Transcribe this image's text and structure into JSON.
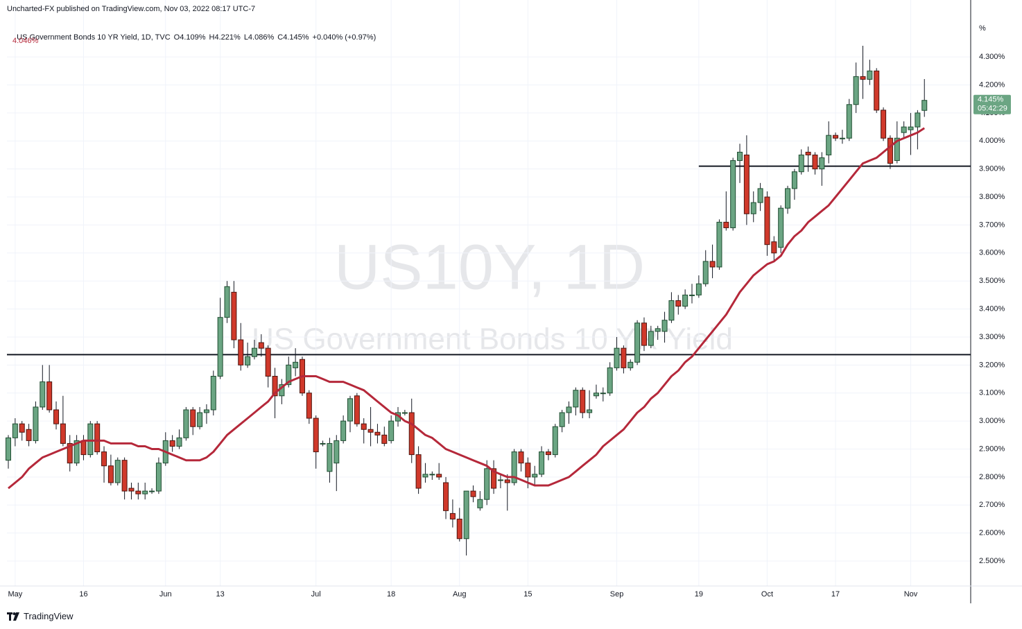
{
  "header": {
    "publisher": "Uncharted-FX published on TradingView.com, Nov 03, 2022 08:17 UTC-7"
  },
  "footer": {
    "brand": "TradingView"
  },
  "chart_data": {
    "type": "candlestick",
    "title": "US Government Bonds 10 YR Yield, 1D, TVC",
    "legend_values": [
      "O4.109%",
      "H4.221%",
      "L4.086%",
      "C4.145%",
      "+0.040% (+0.97%)"
    ],
    "watermark": [
      "US10Y, 1D",
      "US Government Bonds 10 YR Yield"
    ],
    "y_unit": "%",
    "price_label": {
      "label": "4.145%",
      "countdown": "05:42:29",
      "color": "#6ba583"
    },
    "categories": [
      null,
      "May",
      null,
      null,
      null,
      null,
      null,
      null,
      null,
      null,
      null,
      "16",
      null,
      null,
      null,
      null,
      null,
      null,
      null,
      null,
      null,
      null,
      null,
      "Jun",
      null,
      null,
      null,
      null,
      null,
      null,
      null,
      "13",
      null,
      null,
      null,
      null,
      null,
      null,
      null,
      null,
      null,
      null,
      null,
      null,
      null,
      "Jul",
      null,
      null,
      null,
      null,
      null,
      null,
      null,
      null,
      null,
      null,
      "18",
      null,
      null,
      null,
      null,
      null,
      null,
      null,
      null,
      null,
      "Aug",
      null,
      null,
      null,
      null,
      null,
      null,
      null,
      null,
      null,
      "15",
      null,
      null,
      null,
      null,
      null,
      null,
      null,
      null,
      null,
      null,
      null,
      null,
      "Sep",
      null,
      null,
      null,
      null,
      null,
      null,
      null,
      null,
      null,
      null,
      null,
      "19",
      null,
      null,
      null,
      null,
      null,
      null,
      null,
      null,
      null,
      "Oct",
      null,
      null,
      null,
      null,
      null,
      null,
      null,
      null,
      null,
      "17",
      null,
      null,
      null,
      null,
      null,
      null,
      null,
      null,
      null,
      null,
      "Nov",
      null,
      null
    ],
    "open": [
      2.86,
      2.94,
      2.99,
      2.97,
      2.93,
      3.05,
      3.14,
      3.04,
      2.99,
      2.92,
      2.85,
      2.93,
      2.88,
      2.99,
      2.89,
      2.84,
      2.78,
      2.86,
      2.76,
      2.75,
      2.74,
      2.75,
      2.75,
      2.85,
      2.93,
      2.91,
      2.94,
      3.04,
      2.98,
      3.03,
      3.04,
      3.16,
      3.37,
      3.46,
      3.29,
      3.2,
      3.23,
      3.28,
      3.26,
      3.16,
      3.09,
      3.13,
      3.19,
      3.22,
      3.1,
      3.01,
      2.92,
      2.82,
      2.85,
      2.93,
      3.0,
      3.09,
      2.99,
      2.97,
      2.96,
      2.95,
      2.93,
      3.0,
      3.03,
      3.03,
      2.88,
      2.8,
      2.81,
      2.81,
      2.78,
      2.67,
      2.65,
      2.58,
      2.75,
      2.69,
      2.72,
      2.83,
      2.79,
      2.79,
      2.78,
      2.89,
      2.85,
      2.8,
      2.81,
      2.89,
      2.88,
      2.98,
      3.03,
      3.05,
      3.11,
      3.03,
      3.09,
      3.1,
      3.1,
      3.19,
      3.26,
      3.19,
      3.21,
      3.35,
      3.27,
      3.32,
      3.32,
      3.36,
      3.43,
      3.41,
      3.45,
      3.45,
      3.49,
      3.57,
      3.55,
      3.71,
      3.69,
      3.93,
      3.95,
      3.74,
      3.78,
      3.8,
      3.64,
      3.62,
      3.76,
      3.83,
      3.89,
      3.96,
      3.95,
      3.9,
      3.95,
      4.02,
      4.01,
      4.01,
      4.13,
      4.23,
      4.22,
      4.25,
      4.11,
      4.01,
      3.93,
      4.03,
      4.04,
      4.05,
      4.109
    ],
    "high": [
      2.95,
      3.01,
      3.0,
      2.99,
      3.07,
      3.2,
      3.2,
      3.07,
      3.09,
      2.95,
      2.95,
      2.95,
      3.0,
      3.0,
      2.91,
      2.88,
      2.87,
      2.87,
      2.78,
      2.78,
      2.78,
      2.76,
      2.87,
      2.96,
      2.95,
      2.97,
      3.05,
      3.05,
      3.05,
      3.06,
      3.18,
      3.44,
      3.5,
      3.5,
      3.35,
      3.28,
      3.29,
      3.31,
      3.27,
      3.19,
      3.15,
      3.23,
      3.26,
      3.23,
      3.11,
      3.02,
      2.93,
      2.94,
      2.95,
      3.02,
      3.09,
      3.1,
      3.01,
      3.05,
      2.99,
      2.98,
      3.02,
      3.05,
      3.04,
      3.08,
      2.91,
      2.85,
      2.82,
      2.85,
      2.8,
      2.72,
      2.69,
      2.75,
      2.77,
      2.75,
      2.86,
      2.86,
      2.81,
      2.81,
      2.9,
      2.9,
      2.87,
      2.84,
      2.91,
      2.9,
      2.99,
      3.04,
      3.07,
      3.12,
      3.12,
      3.11,
      3.13,
      3.12,
      3.21,
      3.3,
      3.27,
      3.22,
      3.36,
      3.37,
      3.34,
      3.34,
      3.39,
      3.46,
      3.45,
      3.47,
      3.49,
      3.52,
      3.61,
      3.63,
      3.72,
      3.82,
      3.94,
      3.99,
      4.02,
      3.82,
      3.85,
      3.82,
      3.66,
      3.77,
      3.84,
      3.9,
      3.97,
      3.98,
      3.96,
      3.96,
      4.07,
      4.03,
      4.04,
      4.15,
      4.28,
      4.34,
      4.29,
      4.26,
      4.12,
      4.02,
      4.07,
      4.07,
      4.1,
      4.11,
      4.221
    ],
    "low": [
      2.83,
      2.91,
      2.93,
      2.91,
      2.92,
      3.04,
      3.03,
      2.97,
      2.91,
      2.82,
      2.84,
      2.86,
      2.87,
      2.88,
      2.78,
      2.77,
      2.77,
      2.72,
      2.72,
      2.72,
      2.72,
      2.74,
      2.74,
      2.84,
      2.89,
      2.9,
      2.93,
      2.95,
      2.97,
      2.99,
      3.02,
      3.15,
      3.35,
      3.26,
      3.18,
      3.19,
      3.22,
      3.23,
      3.12,
      3.01,
      3.06,
      3.12,
      3.16,
      3.09,
      2.99,
      2.83,
      2.91,
      2.78,
      2.75,
      2.92,
      2.96,
      2.98,
      2.92,
      2.91,
      2.92,
      2.91,
      2.92,
      2.98,
      3.02,
      2.85,
      2.74,
      2.78,
      2.79,
      2.79,
      2.65,
      2.62,
      2.57,
      2.52,
      2.71,
      2.68,
      2.7,
      2.74,
      2.76,
      2.68,
      2.77,
      2.82,
      2.76,
      2.77,
      2.8,
      2.86,
      2.87,
      2.96,
      2.99,
      3.02,
      3.01,
      3.01,
      3.08,
      3.07,
      3.09,
      3.18,
      3.17,
      3.18,
      3.2,
      3.25,
      3.26,
      3.29,
      3.28,
      3.35,
      3.38,
      3.4,
      3.42,
      3.44,
      3.48,
      3.51,
      3.54,
      3.68,
      3.68,
      3.85,
      3.7,
      3.71,
      3.75,
      3.59,
      3.57,
      3.6,
      3.74,
      3.79,
      3.88,
      3.89,
      3.88,
      3.84,
      3.92,
      4.0,
      3.99,
      4.0,
      4.1,
      4.15,
      4.2,
      4.1,
      4.0,
      3.9,
      3.92,
      4.01,
      3.95,
      3.97,
      4.086
    ],
    "close": [
      2.94,
      2.99,
      2.96,
      2.93,
      3.05,
      3.14,
      3.04,
      2.99,
      2.92,
      2.85,
      2.93,
      2.88,
      2.99,
      2.89,
      2.84,
      2.78,
      2.86,
      2.75,
      2.75,
      2.74,
      2.75,
      2.75,
      2.85,
      2.93,
      2.91,
      2.94,
      3.04,
      2.98,
      3.03,
      3.04,
      3.16,
      3.37,
      3.48,
      3.29,
      3.2,
      3.23,
      3.26,
      3.26,
      3.16,
      3.09,
      3.13,
      3.2,
      3.21,
      3.1,
      3.01,
      2.89,
      2.92,
      2.92,
      2.93,
      3.0,
      3.08,
      2.99,
      2.97,
      2.96,
      2.95,
      2.92,
      3.0,
      3.03,
      3.03,
      2.88,
      2.76,
      2.81,
      2.81,
      2.8,
      2.68,
      2.65,
      2.58,
      2.75,
      2.73,
      2.72,
      2.83,
      2.76,
      2.79,
      2.78,
      2.89,
      2.85,
      2.8,
      2.81,
      2.89,
      2.88,
      2.98,
      3.03,
      3.05,
      3.11,
      3.03,
      3.04,
      3.1,
      3.1,
      3.19,
      3.26,
      3.19,
      3.21,
      3.35,
      3.27,
      3.32,
      3.33,
      3.36,
      3.43,
      3.41,
      3.45,
      3.45,
      3.49,
      3.57,
      3.55,
      3.71,
      3.69,
      3.93,
      3.96,
      3.74,
      3.78,
      3.83,
      3.63,
      3.6,
      3.76,
      3.83,
      3.89,
      3.95,
      3.95,
      3.9,
      3.94,
      4.02,
      4.01,
      4.01,
      4.13,
      4.23,
      4.22,
      4.25,
      4.11,
      4.01,
      3.92,
      4.01,
      4.05,
      4.05,
      4.1,
      4.145
    ],
    "up_color": "#6ba583",
    "down_color": "#d0392b",
    "ma": {
      "label": "4.046%",
      "color": "#b5283a",
      "values": [
        2.76,
        2.78,
        2.8,
        2.83,
        2.85,
        2.87,
        2.88,
        2.89,
        2.9,
        2.91,
        2.92,
        2.93,
        2.93,
        2.93,
        2.93,
        2.92,
        2.92,
        2.92,
        2.92,
        2.91,
        2.91,
        2.9,
        2.9,
        2.89,
        2.88,
        2.87,
        2.86,
        2.86,
        2.86,
        2.87,
        2.89,
        2.92,
        2.95,
        2.97,
        2.99,
        3.01,
        3.03,
        3.05,
        3.07,
        3.1,
        3.12,
        3.14,
        3.15,
        3.16,
        3.16,
        3.16,
        3.15,
        3.14,
        3.14,
        3.14,
        3.13,
        3.12,
        3.11,
        3.09,
        3.07,
        3.05,
        3.03,
        3.02,
        3.0,
        2.99,
        2.97,
        2.95,
        2.94,
        2.92,
        2.9,
        2.89,
        2.88,
        2.87,
        2.86,
        2.85,
        2.84,
        2.82,
        2.81,
        2.8,
        2.8,
        2.79,
        2.78,
        2.77,
        2.77,
        2.77,
        2.78,
        2.79,
        2.8,
        2.82,
        2.84,
        2.86,
        2.88,
        2.91,
        2.93,
        2.95,
        2.97,
        3.0,
        3.03,
        3.05,
        3.08,
        3.1,
        3.13,
        3.16,
        3.18,
        3.21,
        3.23,
        3.26,
        3.29,
        3.32,
        3.35,
        3.38,
        3.42,
        3.46,
        3.49,
        3.52,
        3.54,
        3.56,
        3.57,
        3.59,
        3.63,
        3.66,
        3.68,
        3.71,
        3.73,
        3.75,
        3.77,
        3.8,
        3.83,
        3.86,
        3.89,
        3.92,
        3.93,
        3.94,
        3.96,
        3.98,
        4.0,
        4.01,
        4.02,
        4.03,
        4.046
      ]
    },
    "levels": [
      3.237,
      3.91
    ],
    "ylim": [
      2.411,
      4.429
    ],
    "yticks": [
      {
        "value": 2.5,
        "label": "2.500%"
      },
      {
        "value": 2.6,
        "label": "2.600%"
      },
      {
        "value": 2.7,
        "label": "2.700%"
      },
      {
        "value": 2.8,
        "label": "2.800%"
      },
      {
        "value": 2.9,
        "label": "2.900%"
      },
      {
        "value": 3.0,
        "label": "3.000%"
      },
      {
        "value": 3.1,
        "label": "3.100%"
      },
      {
        "value": 3.2,
        "label": "3.200%"
      },
      {
        "value": 3.3,
        "label": "3.300%"
      },
      {
        "value": 3.4,
        "label": "3.400%"
      },
      {
        "value": 3.5,
        "label": "3.500%"
      },
      {
        "value": 3.6,
        "label": "3.600%"
      },
      {
        "value": 3.7,
        "label": "3.700%"
      },
      {
        "value": 3.8,
        "label": "3.800%"
      },
      {
        "value": 3.9,
        "label": "3.900%"
      },
      {
        "value": 4.0,
        "label": "4.000%"
      },
      {
        "value": 4.1,
        "label": "4.100%"
      },
      {
        "value": 4.2,
        "label": "4.200%"
      },
      {
        "value": 4.3,
        "label": "4.300%"
      }
    ],
    "grid": true
  }
}
